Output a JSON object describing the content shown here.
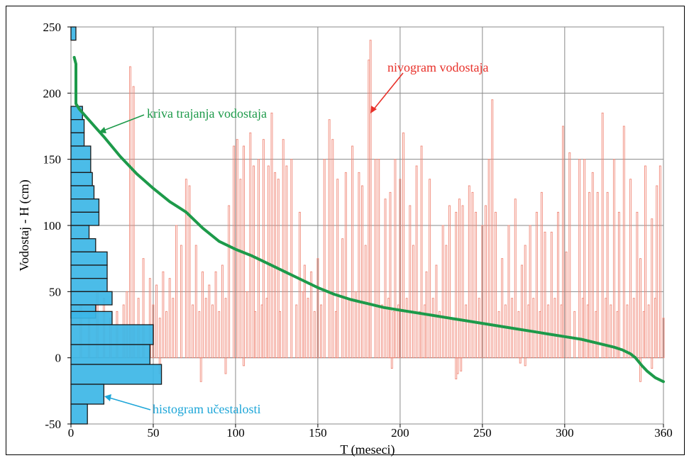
{
  "chart_data": {
    "type": "bar",
    "xlabel": "T (meseci)",
    "ylabel": "Vodostaj - H (cm)",
    "xlim": [
      0,
      360
    ],
    "ylim": [
      -50,
      250
    ],
    "xticks": [
      0,
      50,
      100,
      150,
      200,
      250,
      300,
      360
    ],
    "yticks": [
      -50,
      0,
      50,
      100,
      150,
      200,
      250
    ],
    "grid": true,
    "annotations": [
      {
        "text": "nivogram vodostaja",
        "color": "#e8312a"
      },
      {
        "text": "kriva trajanja vodostaja",
        "color": "#1d9a4a"
      },
      {
        "text": "histogram učestalosti",
        "color": "#1ea6d8"
      }
    ],
    "series": [
      {
        "name": "nivogram vodostaja",
        "type": "bar",
        "color": "#f08878",
        "x": [
          36,
          38,
          64,
          70,
          72,
          96,
          99,
          101,
          103,
          105,
          109,
          111,
          114,
          117,
          120,
          122,
          124,
          126,
          129,
          131,
          134,
          139,
          154,
          157,
          159,
          162,
          167,
          171,
          175,
          177,
          181,
          182,
          185,
          187,
          191,
          194,
          197,
          200,
          202,
          206,
          210,
          213,
          218,
          226,
          230,
          234,
          236,
          238,
          242,
          244,
          246,
          250,
          252,
          254,
          256,
          258,
          266,
          270,
          276,
          279,
          283,
          286,
          292,
          296,
          299,
          303,
          309,
          312,
          315,
          317,
          320,
          323,
          326,
          330,
          333,
          336,
          340,
          344,
          349,
          353,
          356,
          358,
          44,
          48,
          52,
          56,
          60,
          67,
          76,
          80,
          84,
          88,
          92,
          142,
          146,
          150,
          165,
          179,
          208,
          216,
          222,
          228,
          262,
          274,
          288,
          301,
          346,
          6,
          11,
          16,
          20,
          24,
          28,
          32,
          34,
          41,
          50,
          54,
          58,
          62,
          74,
          78,
          82,
          86,
          90,
          94,
          107,
          112,
          116,
          119,
          127,
          137,
          141,
          144,
          148,
          152,
          161,
          169,
          173,
          189,
          193,
          196,
          199,
          204,
          212,
          215,
          220,
          224,
          232,
          240,
          248,
          260,
          264,
          268,
          272,
          278,
          281,
          285,
          290,
          294,
          298,
          306,
          311,
          314,
          319,
          325,
          328,
          332,
          338,
          342,
          348,
          351,
          355,
          360,
          54,
          79,
          94,
          105,
          195,
          234,
          235,
          237,
          273,
          276,
          346,
          353
        ],
        "y": [
          220,
          205,
          100,
          135,
          130,
          115,
          160,
          165,
          135,
          160,
          170,
          145,
          150,
          165,
          145,
          185,
          140,
          135,
          165,
          145,
          150,
          110,
          150,
          180,
          165,
          135,
          140,
          160,
          140,
          130,
          225,
          240,
          150,
          150,
          120,
          125,
          150,
          135,
          170,
          115,
          145,
          160,
          135,
          100,
          115,
          110,
          120,
          115,
          130,
          125,
          110,
          100,
          115,
          150,
          195,
          110,
          100,
          120,
          85,
          100,
          110,
          125,
          95,
          110,
          175,
          155,
          150,
          150,
          125,
          140,
          125,
          185,
          125,
          150,
          110,
          175,
          135,
          110,
          145,
          105,
          130,
          145,
          75,
          60,
          55,
          65,
          60,
          85,
          85,
          65,
          55,
          65,
          70,
          70,
          65,
          75,
          90,
          85,
          85,
          65,
          70,
          85,
          75,
          70,
          95,
          80,
          75,
          40,
          35,
          50,
          45,
          30,
          35,
          40,
          50,
          45,
          40,
          30,
          35,
          45,
          40,
          35,
          45,
          40,
          35,
          45,
          50,
          35,
          40,
          45,
          35,
          40,
          50,
          45,
          35,
          40,
          35,
          45,
          50,
          40,
          45,
          35,
          40,
          45,
          35,
          40,
          45,
          35,
          30,
          40,
          45,
          35,
          40,
          45,
          35,
          40,
          45,
          35,
          40,
          45,
          40,
          35,
          45,
          40,
          35,
          45,
          40,
          35,
          40,
          45,
          35,
          40,
          45,
          30,
          -12,
          -18,
          -12,
          -6,
          -8,
          -16,
          -12,
          -10,
          -4,
          -6,
          -18,
          -8
        ]
      },
      {
        "name": "kriva trajanja vodostaja",
        "type": "line",
        "color": "#1d9a4a",
        "x": [
          2,
          3,
          3,
          5,
          10,
          15,
          20,
          30,
          40,
          50,
          60,
          70,
          80,
          90,
          100,
          110,
          120,
          130,
          140,
          150,
          160,
          170,
          180,
          190,
          200,
          210,
          220,
          230,
          240,
          250,
          260,
          270,
          280,
          290,
          300,
          310,
          320,
          330,
          335,
          340,
          343,
          345,
          347,
          350,
          355,
          360
        ],
        "y": [
          227,
          222,
          192,
          188,
          181,
          174,
          167,
          152,
          139,
          128,
          118,
          110,
          98,
          88,
          82,
          77,
          71,
          65,
          59,
          53,
          48,
          44,
          41,
          38,
          36,
          34,
          32,
          30,
          28,
          26,
          24,
          22,
          20,
          18,
          16,
          14,
          11,
          8,
          6,
          3,
          0,
          -3,
          -6,
          -10,
          -15,
          -18
        ]
      },
      {
        "name": "histogram učestalosti",
        "type": "histogram",
        "color": "#3cb6e6",
        "bins": [
          [
            240,
            250
          ],
          [
            180,
            190
          ],
          [
            170,
            180
          ],
          [
            160,
            170
          ],
          [
            150,
            160
          ],
          [
            140,
            150
          ],
          [
            130,
            140
          ],
          [
            120,
            130
          ],
          [
            110,
            120
          ],
          [
            100,
            110
          ],
          [
            90,
            100
          ],
          [
            80,
            90
          ],
          [
            70,
            80
          ],
          [
            60,
            70
          ],
          [
            50,
            60
          ],
          [
            40,
            50
          ],
          [
            30,
            40
          ],
          [
            25,
            35
          ],
          [
            10,
            25
          ],
          [
            -5,
            10
          ],
          [
            -20,
            -5
          ],
          [
            -35,
            -20
          ],
          [
            -50,
            -35
          ]
        ],
        "values": [
          3,
          7,
          8,
          8,
          12,
          12,
          13,
          14,
          17,
          17,
          11,
          15,
          22,
          22,
          22,
          25,
          15,
          25,
          50,
          48,
          55,
          20,
          10
        ]
      }
    ]
  }
}
